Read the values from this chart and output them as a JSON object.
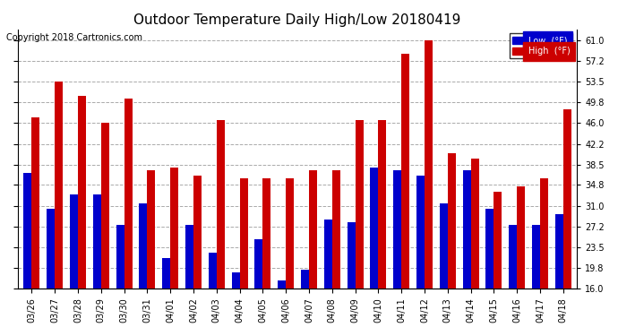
{
  "title": "Outdoor Temperature Daily High/Low 20180419",
  "copyright": "Copyright 2018 Cartronics.com",
  "legend_low": "Low  (°F)",
  "legend_high": "High  (°F)",
  "dates": [
    "03/26",
    "03/27",
    "03/28",
    "03/29",
    "03/30",
    "03/31",
    "04/01",
    "04/02",
    "04/03",
    "04/04",
    "04/05",
    "04/06",
    "04/07",
    "04/08",
    "04/09",
    "04/10",
    "04/11",
    "04/12",
    "04/13",
    "04/14",
    "04/15",
    "04/16",
    "04/17",
    "04/18"
  ],
  "lows": [
    37.0,
    30.5,
    33.0,
    33.0,
    27.5,
    31.5,
    21.5,
    27.5,
    22.5,
    19.0,
    25.0,
    17.5,
    19.5,
    28.5,
    28.0,
    38.0,
    37.5,
    36.5,
    31.5,
    37.5,
    30.5,
    27.5,
    27.5,
    29.5
  ],
  "highs": [
    47.0,
    53.5,
    51.0,
    46.0,
    50.5,
    37.5,
    38.0,
    36.5,
    46.5,
    36.0,
    36.0,
    36.0,
    37.5,
    37.5,
    46.5,
    46.5,
    58.5,
    61.0,
    40.5,
    39.5,
    33.5,
    34.5,
    36.0,
    48.5
  ],
  "low_color": "#0000cc",
  "high_color": "#cc0000",
  "bg_color": "#ffffff",
  "grid_color": "#aaaaaa",
  "ylim_min": 16.0,
  "ylim_max": 63.0,
  "yticks": [
    16.0,
    19.8,
    23.5,
    27.2,
    31.0,
    34.8,
    38.5,
    42.2,
    46.0,
    49.8,
    53.5,
    57.2,
    61.0
  ],
  "bar_width": 0.35
}
